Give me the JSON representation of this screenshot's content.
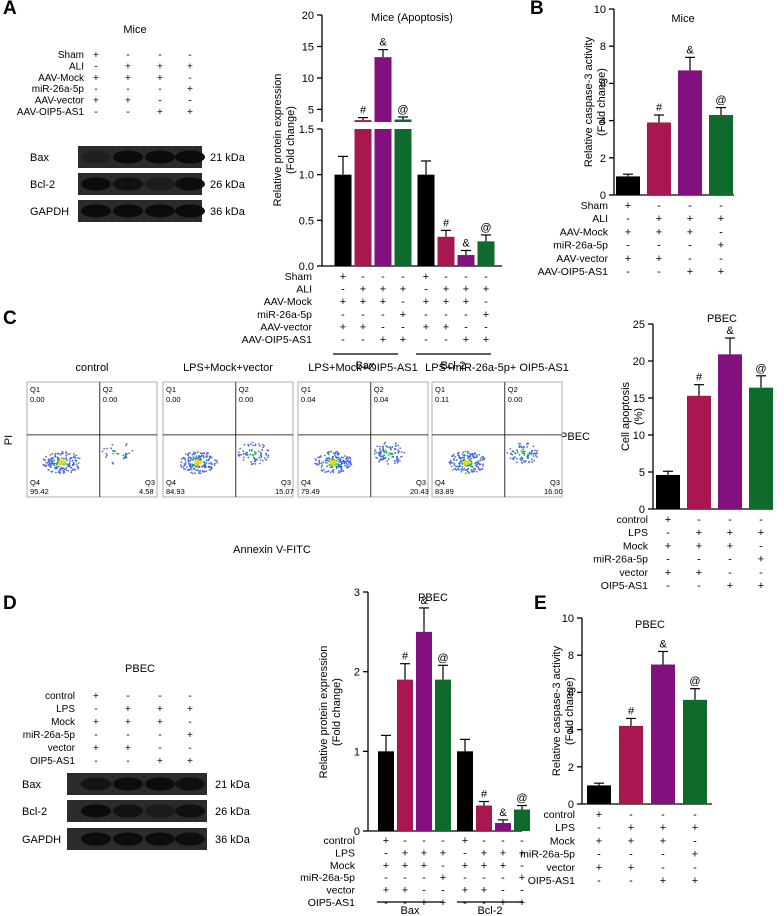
{
  "colors": {
    "black": "#000000",
    "crimson": "#a8174f",
    "purple": "#82107f",
    "green": "#0f6b2c",
    "blot_bg": "#2b2b2b",
    "blot_band": "#0c0c0c"
  },
  "panels": {
    "A": "A",
    "B": "B",
    "C": "C",
    "D": "D",
    "E": "E"
  },
  "panelA": {
    "title": "Mice",
    "rows": [
      {
        "label": "Sham",
        "signs": [
          "+",
          "-",
          "-",
          "-"
        ]
      },
      {
        "label": "ALI",
        "signs": [
          "-",
          "+",
          "+",
          "+"
        ]
      },
      {
        "label": "AAV-Mock",
        "signs": [
          "+",
          "+",
          "+",
          "-"
        ]
      },
      {
        "label": "miR-26a-5p",
        "signs": [
          "-",
          "-",
          "-",
          "+"
        ]
      },
      {
        "label": "AAV-vector",
        "signs": [
          "+",
          "+",
          "-",
          "-"
        ]
      },
      {
        "label": "AAV-OIP5-AS1",
        "signs": [
          "-",
          "-",
          "+",
          "+"
        ]
      }
    ],
    "blots": [
      {
        "label": "Bax",
        "kda": "21 kDa"
      },
      {
        "label": "Bcl-2",
        "kda": "26 kDa"
      },
      {
        "label": "GAPDH",
        "kda": "36 kDa"
      }
    ]
  },
  "panelD": {
    "title": "PBEC",
    "rows": [
      {
        "label": "control",
        "signs": [
          "+",
          "-",
          "-",
          "-"
        ]
      },
      {
        "label": "LPS",
        "signs": [
          "-",
          "+",
          "+",
          "+"
        ]
      },
      {
        "label": "Mock",
        "signs": [
          "+",
          "+",
          "+",
          "-"
        ]
      },
      {
        "label": "miR-26a-5p",
        "signs": [
          "-",
          "-",
          "-",
          "+"
        ]
      },
      {
        "label": "vector",
        "signs": [
          "+",
          "+",
          "-",
          "-"
        ]
      },
      {
        "label": "OIP5-AS1",
        "signs": [
          "-",
          "-",
          "+",
          "+"
        ]
      }
    ],
    "blots": [
      {
        "label": "Bax",
        "kda": "21 kDa"
      },
      {
        "label": "Bcl-2",
        "kda": "26 kDa"
      },
      {
        "label": "GAPDH",
        "kda": "36 kDa"
      }
    ]
  },
  "panelC_flow": {
    "plots": [
      {
        "title": "control",
        "q1": "0.00",
        "q2": "0.00",
        "q3": "4.58",
        "q4": "95.42"
      },
      {
        "title": "LPS+Mock+vector",
        "q1": "0.00",
        "q2": "0.00",
        "q3": "15.07",
        "q4": "84.93"
      },
      {
        "title": "LPS+Mock+OIP5-AS1",
        "q1": "0.04",
        "q2": "0.04",
        "q3": "20.43",
        "q4": "79.49"
      },
      {
        "title": "LPS+miR-26a-5p+ OIP5-AS1",
        "q1": "0.11",
        "q2": "0.00",
        "q3": "16.00",
        "q4": "83.89"
      }
    ],
    "ylabel": "PI",
    "xlabel": "Annexin V-FITC",
    "side_label": "PBEC",
    "quadrants": {
      "q1": "Q1",
      "q2": "Q2",
      "q3": "Q3",
      "q4": "Q4"
    }
  },
  "chart_data": [
    {
      "id": "A_chart",
      "type": "bar",
      "title": "Mice (Apoptosis)",
      "ylabel": "Relative protein expression (Fold change)",
      "ylim_lower": [
        0,
        1.5
      ],
      "ylim_upper": [
        3,
        20
      ],
      "y_ticks_lower": [
        "0.0",
        "0.5",
        "1.0",
        "1.5"
      ],
      "y_ticks_upper": [
        "5",
        "10",
        "15",
        "20"
      ],
      "groups": [
        "Bax",
        "Bcl-2"
      ],
      "series": [
        {
          "name": "Sham/AAV-Mock/AAV-vector",
          "values": [
            1.0,
            1.0
          ],
          "errors": [
            0.2,
            0.15
          ],
          "markers": [
            "",
            ""
          ]
        },
        {
          "name": "ALI/AAV-Mock/AAV-vector",
          "values": [
            3.3,
            0.32
          ],
          "errors": [
            0.4,
            0.07
          ],
          "markers": [
            "#",
            "#"
          ]
        },
        {
          "name": "ALI/AAV-Mock/AAV-OIP5-AS1",
          "values": [
            13.3,
            0.12
          ],
          "errors": [
            1.2,
            0.05
          ],
          "markers": [
            "&",
            "&"
          ]
        },
        {
          "name": "ALI/miR-26a-5p/AAV-OIP5-AS1",
          "values": [
            3.4,
            0.27
          ],
          "errors": [
            0.4,
            0.07
          ],
          "markers": [
            "@",
            "@"
          ]
        }
      ],
      "conditions": [
        {
          "label": "Sham",
          "signs": [
            "+",
            "-",
            "-",
            "-",
            "+",
            "-",
            "-",
            "-"
          ]
        },
        {
          "label": "ALI",
          "signs": [
            "-",
            "+",
            "+",
            "+",
            "-",
            "+",
            "+",
            "+"
          ]
        },
        {
          "label": "AAV-Mock",
          "signs": [
            "+",
            "+",
            "+",
            "-",
            "+",
            "+",
            "+",
            "-"
          ]
        },
        {
          "label": "miR-26a-5p",
          "signs": [
            "-",
            "-",
            "-",
            "+",
            "-",
            "-",
            "-",
            "+"
          ]
        },
        {
          "label": "AAV-vector",
          "signs": [
            "+",
            "+",
            "-",
            "-",
            "+",
            "+",
            "-",
            "-"
          ]
        },
        {
          "label": "AAV-OIP5-AS1",
          "signs": [
            "-",
            "-",
            "+",
            "+",
            "-",
            "-",
            "+",
            "+"
          ]
        }
      ]
    },
    {
      "id": "B_chart",
      "type": "bar",
      "title": "Mice",
      "ylabel": "Relative caspase-3 activity (Fold change)",
      "ylim": [
        0,
        10
      ],
      "y_ticks": [
        "0",
        "2",
        "4",
        "6",
        "8",
        "10"
      ],
      "series": [
        {
          "name": "group1",
          "value": 1.0,
          "error": 0.12,
          "marker": ""
        },
        {
          "name": "group2",
          "value": 3.9,
          "error": 0.4,
          "marker": "#"
        },
        {
          "name": "group3",
          "value": 6.7,
          "error": 0.7,
          "marker": "&"
        },
        {
          "name": "group4",
          "value": 4.3,
          "error": 0.4,
          "marker": "@"
        }
      ],
      "conditions": [
        {
          "label": "Sham",
          "signs": [
            "+",
            "-",
            "-",
            "-"
          ]
        },
        {
          "label": "ALI",
          "signs": [
            "-",
            "+",
            "+",
            "+"
          ]
        },
        {
          "label": "AAV-Mock",
          "signs": [
            "+",
            "+",
            "+",
            "-"
          ]
        },
        {
          "label": "miR-26a-5p",
          "signs": [
            "-",
            "-",
            "-",
            "+"
          ]
        },
        {
          "label": "AAV-vector",
          "signs": [
            "+",
            "+",
            "-",
            "-"
          ]
        },
        {
          "label": "AAV-OIP5-AS1",
          "signs": [
            "-",
            "-",
            "+",
            "+"
          ]
        }
      ]
    },
    {
      "id": "C_chart",
      "type": "bar",
      "title": "PBEC",
      "ylabel": "Cell apoptosis (%)",
      "ylim": [
        0,
        25
      ],
      "y_ticks": [
        "0",
        "5",
        "10",
        "15",
        "20",
        "25"
      ],
      "series": [
        {
          "name": "group1",
          "value": 4.6,
          "error": 0.5,
          "marker": ""
        },
        {
          "name": "group2",
          "value": 15.3,
          "error": 1.5,
          "marker": "#"
        },
        {
          "name": "group3",
          "value": 20.9,
          "error": 2.2,
          "marker": "&"
        },
        {
          "name": "group4",
          "value": 16.4,
          "error": 1.6,
          "marker": "@"
        }
      ],
      "conditions": [
        {
          "label": "control",
          "signs": [
            "+",
            "-",
            "-",
            "-"
          ]
        },
        {
          "label": "LPS",
          "signs": [
            "-",
            "+",
            "+",
            "+"
          ]
        },
        {
          "label": "Mock",
          "signs": [
            "+",
            "+",
            "+",
            "-"
          ]
        },
        {
          "label": "miR-26a-5p",
          "signs": [
            "-",
            "-",
            "-",
            "+"
          ]
        },
        {
          "label": "vector",
          "signs": [
            "+",
            "+",
            "-",
            "-"
          ]
        },
        {
          "label": "OIP5-AS1",
          "signs": [
            "-",
            "-",
            "+",
            "+"
          ]
        }
      ]
    },
    {
      "id": "D_chart",
      "type": "bar",
      "title": "PBEC",
      "ylabel": "Relative protein expression (Fold change)",
      "ylim": [
        0,
        3
      ],
      "y_ticks": [
        "0",
        "1",
        "2",
        "3"
      ],
      "groups": [
        "Bax",
        "Bcl-2"
      ],
      "series": [
        {
          "name": "group1",
          "values": [
            1.0,
            1.0
          ],
          "errors": [
            0.2,
            0.15
          ],
          "markers": [
            "",
            ""
          ]
        },
        {
          "name": "group2",
          "values": [
            1.9,
            0.32
          ],
          "errors": [
            0.2,
            0.05
          ],
          "markers": [
            "#",
            "#"
          ]
        },
        {
          "name": "group3",
          "values": [
            2.5,
            0.1
          ],
          "errors": [
            0.3,
            0.04
          ],
          "markers": [
            "&",
            "&"
          ]
        },
        {
          "name": "group4",
          "values": [
            1.9,
            0.27
          ],
          "errors": [
            0.18,
            0.05
          ],
          "markers": [
            "@",
            "@"
          ]
        }
      ],
      "conditions": [
        {
          "label": "control",
          "signs": [
            "+",
            "-",
            "-",
            "-",
            "+",
            "-",
            "-",
            "-"
          ]
        },
        {
          "label": "LPS",
          "signs": [
            "-",
            "+",
            "+",
            "+",
            "-",
            "+",
            "+",
            "+"
          ]
        },
        {
          "label": "Mock",
          "signs": [
            "+",
            "+",
            "+",
            "-",
            "+",
            "+",
            "+",
            "-"
          ]
        },
        {
          "label": "miR-26a-5p",
          "signs": [
            "-",
            "-",
            "-",
            "+",
            "-",
            "-",
            "-",
            "+"
          ]
        },
        {
          "label": "vector",
          "signs": [
            "+",
            "+",
            "-",
            "-",
            "+",
            "+",
            "-",
            "-"
          ]
        },
        {
          "label": "OIP5-AS1",
          "signs": [
            "-",
            "-",
            "+",
            "+",
            "-",
            "-",
            "+",
            "+"
          ]
        }
      ]
    },
    {
      "id": "E_chart",
      "type": "bar",
      "title": "PBEC",
      "ylabel": "Relative caspase-3 activity (Fold change)",
      "ylim": [
        0,
        10
      ],
      "y_ticks": [
        "0",
        "2",
        "4",
        "6",
        "8",
        "10"
      ],
      "series": [
        {
          "name": "group1",
          "value": 1.0,
          "error": 0.12,
          "marker": ""
        },
        {
          "name": "group2",
          "value": 4.2,
          "error": 0.4,
          "marker": "#"
        },
        {
          "name": "group3",
          "value": 7.5,
          "error": 0.7,
          "marker": "&"
        },
        {
          "name": "group4",
          "value": 5.6,
          "error": 0.6,
          "marker": "@"
        }
      ],
      "conditions": [
        {
          "label": "control",
          "signs": [
            "+",
            "-",
            "-",
            "-"
          ]
        },
        {
          "label": "LPS",
          "signs": [
            "-",
            "+",
            "+",
            "+"
          ]
        },
        {
          "label": "Mock",
          "signs": [
            "+",
            "+",
            "+",
            "-"
          ]
        },
        {
          "label": "miR-26a-5p",
          "signs": [
            "-",
            "-",
            "-",
            "+"
          ]
        },
        {
          "label": "vector",
          "signs": [
            "+",
            "+",
            "-",
            "-"
          ]
        },
        {
          "label": "OIP5-AS1",
          "signs": [
            "-",
            "-",
            "+",
            "+"
          ]
        }
      ]
    }
  ]
}
